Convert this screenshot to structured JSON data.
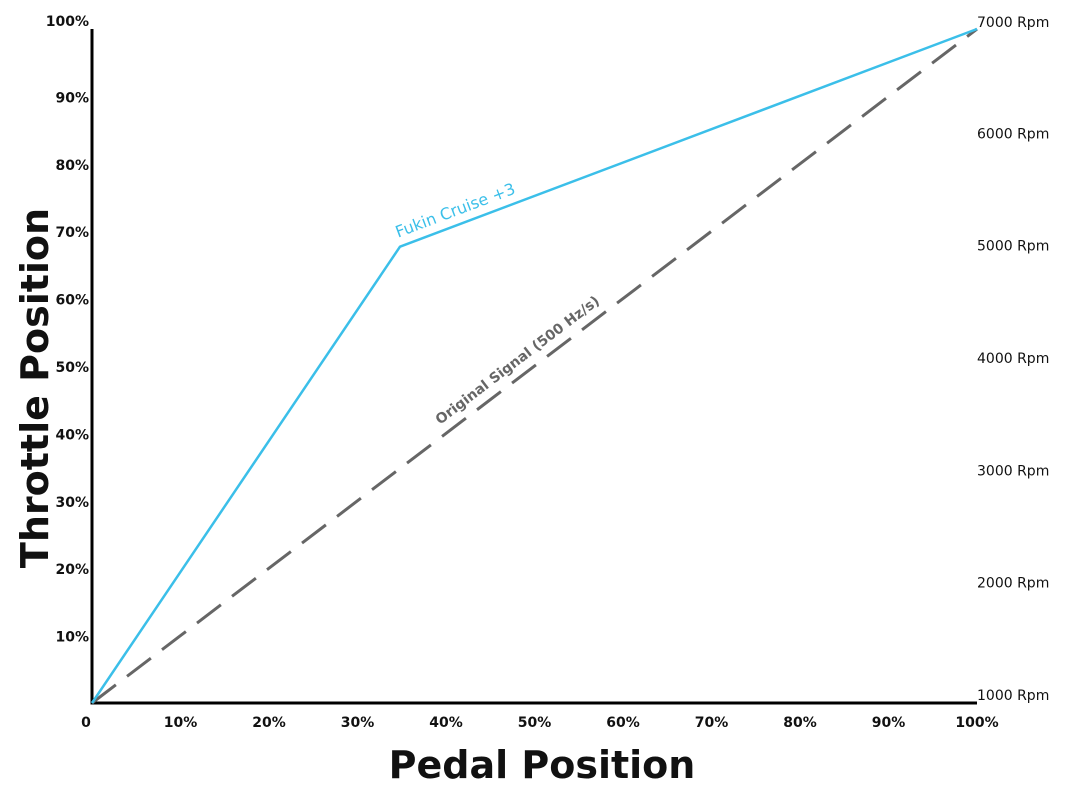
{
  "chart_data": {
    "type": "line",
    "xlabel": "Pedal Position",
    "ylabel": "Throttle Position",
    "xlim": [
      0,
      100
    ],
    "ylim": [
      0,
      100
    ],
    "x_ticks": [
      "0",
      "10%",
      "20%",
      "30%",
      "40%",
      "50%",
      "60%",
      "70%",
      "80%",
      "90%",
      "100%"
    ],
    "y_ticks": [
      "10%",
      "20%",
      "30%",
      "40%",
      "50%",
      "60%",
      "70%",
      "80%",
      "90%",
      "100%"
    ],
    "y2_ticks": [
      "1000 Rpm",
      "2000 Rpm",
      "3000 Rpm",
      "4000 Rpm",
      "5000 Rpm",
      "6000 Rpm",
      "7000 Rpm"
    ],
    "y2lim": [
      1000,
      7000
    ],
    "grid": false,
    "series": [
      {
        "name": "Fukin Cruise +3",
        "color": "#3bbfe9",
        "style": "solid",
        "x": [
          0,
          34.8,
          100
        ],
        "y": [
          0,
          67.7,
          100
        ]
      },
      {
        "name": "Original Signal (500 Hz/s)",
        "color": "#666666",
        "style": "dashed",
        "x": [
          0,
          100
        ],
        "y": [
          0,
          100
        ]
      }
    ]
  }
}
